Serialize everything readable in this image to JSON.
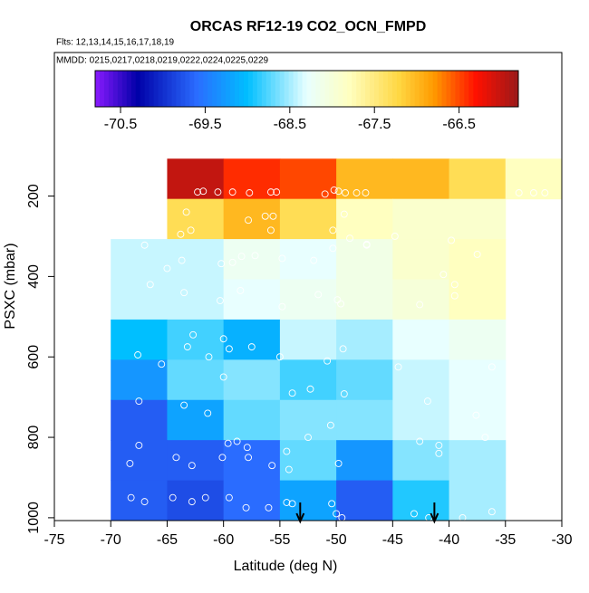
{
  "chart_data": {
    "type": "heatmap",
    "title": "ORCAS RF12-19 CO2_OCN_FMPD",
    "subtitle": "Flts: 12,13,14,15,16,17,18,19",
    "note": "MMDD: 0215,0217,0218,0219,0222,0224,0225,0229",
    "xlabel": "Latitude (deg N)",
    "ylabel": "PSXC (mbar)",
    "xlim": [
      -75,
      -30
    ],
    "xticks": [
      -75,
      -70,
      -65,
      -60,
      -55,
      -50,
      -45,
      -40,
      -35,
      -30
    ],
    "ylim": [
      1007,
      -157
    ],
    "yticks": [
      200,
      400,
      600,
      800,
      1000
    ],
    "x_edges": [
      -70,
      -65,
      -60,
      -55,
      -50,
      -45,
      -40,
      -35,
      -30
    ],
    "y_edges": [
      107,
      207,
      307,
      407,
      507,
      607,
      707,
      807,
      907,
      1007
    ],
    "z": [
      [
        null,
        -66.0,
        -66.4,
        -66.5,
        -67.0,
        -67.0,
        -67.3,
        -67.8
      ],
      [
        null,
        -67.3,
        -67.0,
        -67.3,
        -67.8,
        -67.9,
        -67.9,
        null
      ],
      [
        -68.4,
        -68.4,
        -68.2,
        -68.3,
        -68.1,
        -67.9,
        -67.8,
        null
      ],
      [
        -68.4,
        -68.4,
        -68.3,
        -68.2,
        -68.1,
        -68.0,
        -67.8,
        null
      ],
      [
        -69.0,
        -68.8,
        -69.1,
        -68.4,
        -68.5,
        -68.3,
        -68.2,
        null
      ],
      [
        -69.3,
        -68.7,
        -68.6,
        -68.8,
        -68.7,
        -68.4,
        -68.3,
        null
      ],
      [
        -69.7,
        -69.2,
        -68.7,
        -68.6,
        -68.6,
        -68.4,
        -68.3,
        null
      ],
      [
        -69.7,
        -69.7,
        -69.6,
        -68.7,
        -69.3,
        -68.6,
        -68.5,
        null
      ],
      [
        -69.7,
        -69.8,
        -69.6,
        -69.2,
        -69.7,
        -68.9,
        -68.5,
        null
      ]
    ],
    "colorscale": [
      [
        -70.8,
        "#8a1aff"
      ],
      [
        -70.3,
        "#0000a8"
      ],
      [
        -69.6,
        "#2a6cff"
      ],
      [
        -69.0,
        "#00bfff"
      ],
      [
        -68.3,
        "#e8ffff"
      ],
      [
        -67.8,
        "#ffffc0"
      ],
      [
        -67.2,
        "#ffd640"
      ],
      [
        -66.8,
        "#ff9a00"
      ],
      [
        -66.3,
        "#ff1000"
      ],
      [
        -65.8,
        "#9a1a1a"
      ]
    ],
    "colorbar_lim": [
      -70.8,
      -65.8
    ],
    "colorbar_ticks": [
      -70.5,
      -69.5,
      -68.5,
      -67.5,
      -66.5
    ],
    "points": {
      "x": [
        -62.3,
        -61.8,
        -60.5,
        -59.2,
        -57.7,
        -55.8,
        -55.3,
        -51,
        -50.2,
        -49.8,
        -49.2,
        -48.2,
        -47.4,
        -33.8,
        -32.5,
        -31.5,
        -63.3,
        -57.8,
        -56.3,
        -55.6,
        -55.8,
        -63.8,
        -62.9,
        -49.3,
        -50.3,
        -48.8,
        -47.3,
        -39.8,
        -37.5,
        -67,
        -65,
        -63.7,
        -60.2,
        -59.2,
        -58.4,
        -57.2,
        -54.8,
        -52,
        -50.3,
        -47.3,
        -44.8,
        -40.5,
        -66.5,
        -63.5,
        -60.3,
        -58.5,
        -54.8,
        -51.6,
        -49.9,
        -49.6,
        -42.6,
        -39.5,
        -39.5,
        -62.7,
        -60,
        -59.5,
        -57.5,
        -55,
        -50.8,
        -49.4,
        -44.5,
        -36.2,
        -67.6,
        -65.5,
        -63.2,
        -61.3,
        -60,
        -53.9,
        -52.3,
        -49.3,
        -41.9,
        -37.6,
        -67.5,
        -63.5,
        -61.4,
        -59.6,
        -58.8,
        -57.9,
        -54.4,
        -52.5,
        -50.5,
        -42.6,
        -40.9,
        -36.8,
        -68.3,
        -67.5,
        -64.2,
        -62.8,
        -60.1,
        -57.8,
        -55.7,
        -54.2,
        -49.8,
        -40.9,
        -68.2,
        -67,
        -64.5,
        -62.8,
        -61.6,
        -59.5,
        -58,
        -56,
        -54.4,
        -53.9,
        -50.4,
        -50,
        -49.5,
        -43.1,
        -41.8,
        -38.8,
        -36.2
      ],
      "y": [
        190,
        188,
        190,
        190,
        192,
        190,
        190,
        195,
        185,
        188,
        192,
        192,
        192,
        192,
        192,
        192,
        240,
        260,
        250,
        250,
        285,
        295,
        285,
        245,
        285,
        305,
        320,
        310,
        345,
        322,
        380,
        360,
        368,
        365,
        350,
        348,
        355,
        360,
        330,
        322,
        300,
        395,
        420,
        440,
        460,
        435,
        475,
        445,
        458,
        468,
        470,
        448,
        420,
        545,
        555,
        580,
        575,
        600,
        610,
        580,
        625,
        625,
        595,
        618,
        575,
        600,
        650,
        690,
        680,
        692,
        710,
        745,
        710,
        720,
        740,
        815,
        810,
        825,
        835,
        800,
        770,
        810,
        820,
        800,
        865,
        820,
        850,
        870,
        850,
        850,
        870,
        880,
        865,
        840,
        950,
        960,
        950,
        960,
        950,
        950,
        975,
        975,
        962,
        965,
        965,
        990,
        1000,
        990,
        1000,
        1000,
        985
      ]
    },
    "arrows_x": [
      -53.2,
      -41.3
    ]
  }
}
